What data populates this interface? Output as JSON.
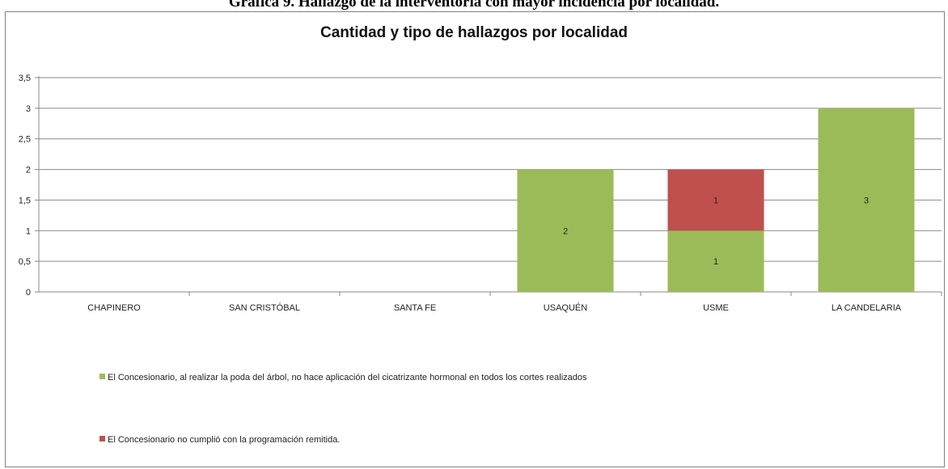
{
  "caption": "Gráfica 9. Hallazgo de la interventoría con mayor incidencia por localidad.",
  "chart_data": {
    "type": "bar",
    "stacked": true,
    "title": "Cantidad y tipo de hallazgos por localidad",
    "xlabel": "",
    "ylabel": "",
    "ylim": [
      0,
      3.5
    ],
    "yticks": [
      "0",
      "0,5",
      "1",
      "1,5",
      "2",
      "2,5",
      "3",
      "3,5"
    ],
    "categories": [
      "CHAPINERO",
      "SAN CRISTÓBAL",
      "SANTA FE",
      "USAQUÉN",
      "USME",
      "LA CANDELARIA"
    ],
    "series": [
      {
        "name": "El Concesionario, al realizar la poda del árbol,  no  hace aplicación del cicatrizante hormonal en todos los cortes realizados",
        "color": "#9BBB59",
        "values": [
          0,
          0,
          0,
          2,
          1,
          3
        ]
      },
      {
        "name": "El Concesionario no cumplió con la programación remitida.",
        "color": "#C0504D",
        "values": [
          0,
          0,
          0,
          0,
          1,
          0
        ]
      }
    ],
    "grid": true,
    "legend_position": "bottom-left"
  }
}
